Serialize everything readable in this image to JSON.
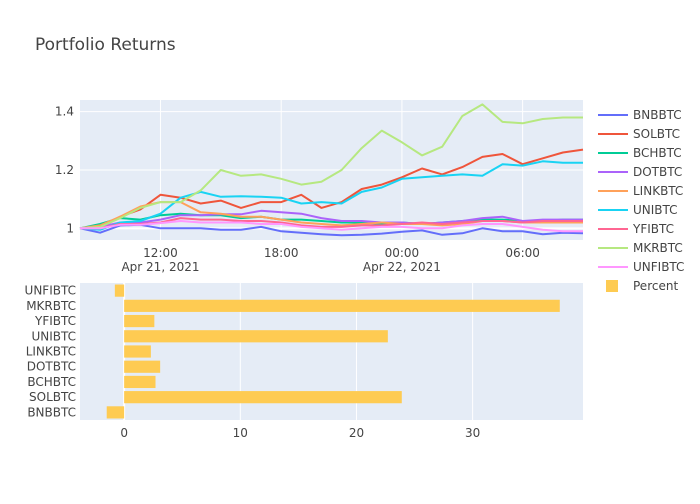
{
  "chart_data": [
    {
      "type": "line",
      "title": "Portfolio Returns",
      "xlabel": "",
      "ylabel": "",
      "x_tick_labels": [
        "12:00",
        "18:00",
        "00:00",
        "06:00"
      ],
      "x_date_labels": [
        "Apr 21, 2021",
        "Apr 22, 2021"
      ],
      "x": [
        "2021-04-21 08:00",
        "2021-04-21 09:00",
        "2021-04-21 10:00",
        "2021-04-21 11:00",
        "2021-04-21 12:00",
        "2021-04-21 13:00",
        "2021-04-21 14:00",
        "2021-04-21 15:00",
        "2021-04-21 16:00",
        "2021-04-21 17:00",
        "2021-04-21 18:00",
        "2021-04-21 19:00",
        "2021-04-21 20:00",
        "2021-04-21 21:00",
        "2021-04-21 22:00",
        "2021-04-21 23:00",
        "2021-04-22 00:00",
        "2021-04-22 01:00",
        "2021-04-22 02:00",
        "2021-04-22 03:00",
        "2021-04-22 04:00",
        "2021-04-22 05:00",
        "2021-04-22 06:00",
        "2021-04-22 07:00",
        "2021-04-22 08:00",
        "2021-04-22 09:00"
      ],
      "xlim": [
        "2021-04-21 08:00",
        "2021-04-22 09:00"
      ],
      "ylim": [
        0.96,
        1.44
      ],
      "y_ticks": [
        1,
        1.2,
        1.4
      ],
      "y_tick_labels": [
        "1",
        "1.2",
        "1.4"
      ],
      "grid": true,
      "legend": "right",
      "series": [
        {
          "name": "BNBBTC",
          "color": "#636efa",
          "values": [
            1.0,
            0.985,
            1.01,
            1.012,
            1.0,
            1.0,
            1.0,
            0.995,
            0.995,
            1.005,
            0.99,
            0.985,
            0.98,
            0.976,
            0.978,
            0.982,
            0.988,
            0.993,
            0.978,
            0.983,
            1.0,
            0.99,
            0.99,
            0.98,
            0.985,
            0.983
          ]
        },
        {
          "name": "SOLBTC",
          "color": "#ef553b",
          "values": [
            1.0,
            1.005,
            1.04,
            1.065,
            1.115,
            1.105,
            1.085,
            1.095,
            1.07,
            1.09,
            1.09,
            1.115,
            1.07,
            1.09,
            1.135,
            1.15,
            1.175,
            1.205,
            1.185,
            1.21,
            1.245,
            1.255,
            1.22,
            1.24,
            1.26,
            1.27
          ]
        },
        {
          "name": "BCHBTC",
          "color": "#00cc96",
          "values": [
            1.0,
            1.015,
            1.035,
            1.03,
            1.045,
            1.05,
            1.045,
            1.045,
            1.035,
            1.04,
            1.03,
            1.03,
            1.025,
            1.02,
            1.02,
            1.015,
            1.02,
            1.015,
            1.02,
            1.025,
            1.03,
            1.03,
            1.025,
            1.025,
            1.03,
            1.03
          ]
        },
        {
          "name": "DOTBTC",
          "color": "#ab63fa",
          "values": [
            1.0,
            1.005,
            1.02,
            1.02,
            1.03,
            1.045,
            1.045,
            1.048,
            1.048,
            1.06,
            1.055,
            1.05,
            1.035,
            1.025,
            1.025,
            1.02,
            1.02,
            1.015,
            1.02,
            1.025,
            1.035,
            1.04,
            1.025,
            1.03,
            1.03,
            1.03
          ]
        },
        {
          "name": "LINKBTC",
          "color": "#ffa15a",
          "values": [
            1.0,
            1.01,
            1.04,
            1.075,
            1.09,
            1.09,
            1.055,
            1.05,
            1.04,
            1.04,
            1.03,
            1.02,
            1.015,
            1.01,
            1.015,
            1.02,
            1.015,
            1.015,
            1.01,
            1.015,
            1.025,
            1.025,
            1.02,
            1.02,
            1.02,
            1.02
          ]
        },
        {
          "name": "UNIBTC",
          "color": "#19d3f3",
          "values": [
            1.0,
            0.995,
            1.02,
            1.025,
            1.05,
            1.105,
            1.125,
            1.108,
            1.11,
            1.108,
            1.105,
            1.085,
            1.09,
            1.085,
            1.125,
            1.14,
            1.17,
            1.175,
            1.18,
            1.185,
            1.18,
            1.22,
            1.215,
            1.23,
            1.225,
            1.225
          ]
        },
        {
          "name": "YFIBTC",
          "color": "#ff6692",
          "values": [
            1.0,
            1.0,
            1.015,
            1.015,
            1.02,
            1.035,
            1.03,
            1.03,
            1.025,
            1.025,
            1.02,
            1.01,
            1.005,
            1.005,
            1.01,
            1.01,
            1.015,
            1.02,
            1.015,
            1.02,
            1.025,
            1.025,
            1.02,
            1.025,
            1.025,
            1.025
          ]
        },
        {
          "name": "MKRBTC",
          "color": "#b6e880",
          "values": [
            1.0,
            1.005,
            1.035,
            1.07,
            1.09,
            1.09,
            1.13,
            1.2,
            1.18,
            1.185,
            1.17,
            1.15,
            1.16,
            1.2,
            1.275,
            1.335,
            1.295,
            1.25,
            1.28,
            1.385,
            1.425,
            1.365,
            1.36,
            1.375,
            1.38,
            1.38
          ]
        },
        {
          "name": "UNFIBTC",
          "color": "#ff97ff",
          "values": [
            1.0,
            1.0,
            1.012,
            1.012,
            1.018,
            1.025,
            1.02,
            1.02,
            1.02,
            1.015,
            1.015,
            1.005,
            1.0,
            0.995,
            1.0,
            1.005,
            1.005,
            1.0,
            1.0,
            1.01,
            1.015,
            1.015,
            1.005,
            0.995,
            0.99,
            0.99
          ]
        }
      ]
    },
    {
      "type": "bar",
      "orientation": "horizontal",
      "series_name": "Percent",
      "color": "#fecb52",
      "categories": [
        "BNBBTC",
        "SOLBTC",
        "BCHBTC",
        "DOTBTC",
        "LINKBTC",
        "UNIBTC",
        "YFIBTC",
        "MKRBTC",
        "UNFIBTC"
      ],
      "values": [
        -1.5,
        23.9,
        2.7,
        3.1,
        2.3,
        22.7,
        2.6,
        37.5,
        -0.8
      ],
      "xlim": [
        -3.8,
        39.5
      ],
      "x_ticks": [
        0,
        10,
        20,
        30
      ],
      "x_tick_labels": [
        "0",
        "10",
        "20",
        "30"
      ],
      "grid": true
    }
  ]
}
